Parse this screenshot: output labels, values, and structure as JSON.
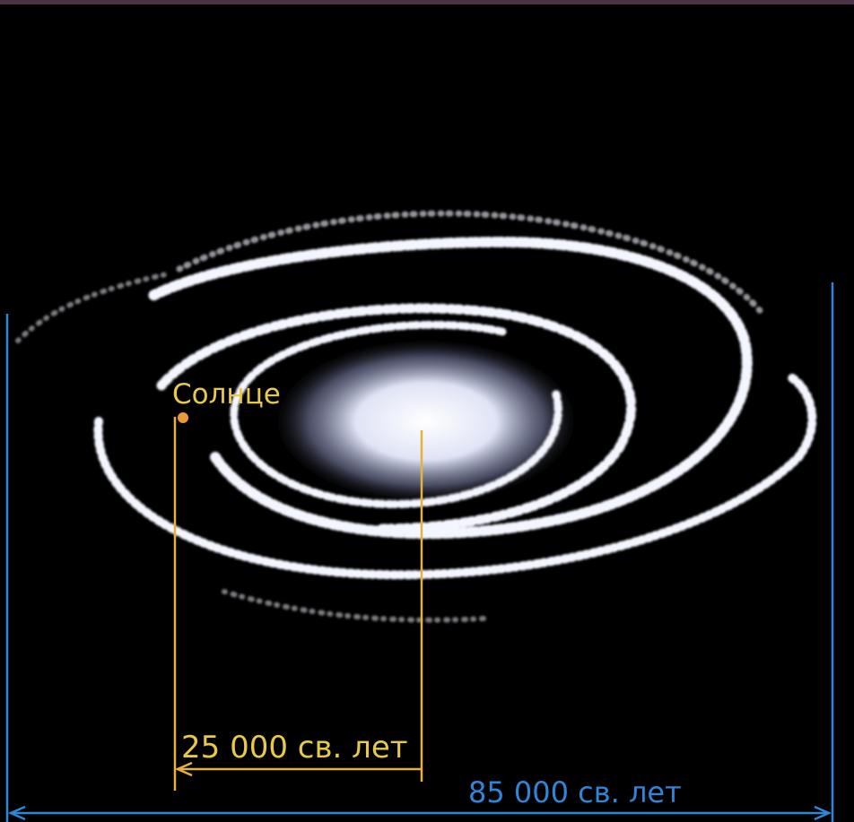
{
  "labels": {
    "sun": "Солнце",
    "sun_distance": "25 000 св. лет",
    "diameter": "85 000 св. лет"
  }
}
